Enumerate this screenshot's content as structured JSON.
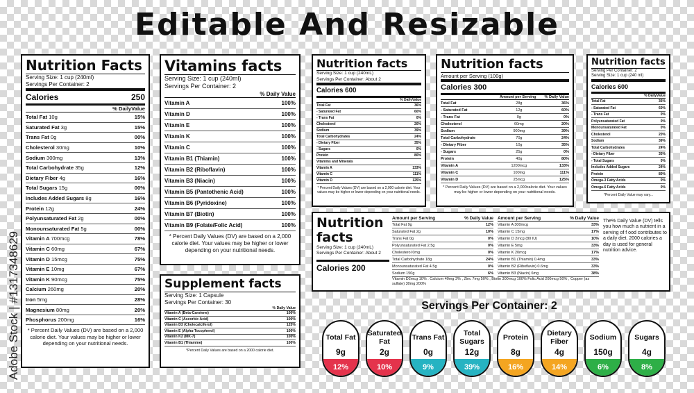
{
  "heading": "Editable And Resizable",
  "watermark": "Adobe Stock | #1317348629",
  "panels": [
    {
      "title": "Nutrition Facts",
      "lines": [
        "Serving Size: 1 cup (240ml)",
        "Servings Per Container: 2"
      ],
      "calories": [
        "Calories",
        "250"
      ],
      "header": [
        "% DailyValue"
      ],
      "rows": [
        [
          "Total Fat",
          "10g",
          "15%"
        ],
        [
          "Saturated Fat",
          "3g",
          "15%"
        ],
        [
          "Trans Fat",
          "0g",
          "00%"
        ],
        [
          "Cholesterol",
          "30mg",
          "10%"
        ],
        [
          "Sodium",
          "300mg",
          "13%"
        ],
        [
          "Total Carbohydrate",
          "35g",
          "12%"
        ],
        [
          "Dietary Fiber",
          "4g",
          "16%"
        ],
        [
          "Total Sugars",
          "15g",
          "00%"
        ],
        [
          "Includes Added Sugars",
          "8g",
          "16%"
        ],
        [
          "Protein",
          "12g",
          "24%"
        ],
        [
          "Polyunsaturated Fat",
          "2g",
          "00%"
        ],
        [
          "Monounsaturated Fat",
          "5g",
          "00%"
        ],
        [
          "Vitamin A",
          "700mcg",
          "78%"
        ],
        [
          "Vitamin C",
          "60mg",
          "67%"
        ],
        [
          "Vitamin D",
          "15mcg",
          "75%"
        ],
        [
          "Vitamin E",
          "10mg",
          "67%"
        ],
        [
          "Vitamin K",
          "90mcg",
          "75%"
        ],
        [
          "Calcium",
          "260mg",
          "20%"
        ],
        [
          "Iron",
          "5mg",
          "28%"
        ],
        [
          "Magnesium",
          "80mg",
          "20%"
        ],
        [
          "Phosphorus",
          "200mg",
          "16%"
        ]
      ],
      "footnote": "* Percent Daily Values (DV) are based on a 2,000 calorie diet. Your values may be higher or lower depending on your nutritional needs."
    },
    {
      "title": "Vitamins facts",
      "lines": [
        "Serving Size: 1 cup (240ml)",
        "Servings Per Container: 2"
      ],
      "header": [
        "% Daily Value"
      ],
      "rows": [
        [
          "Vitamin A",
          "100%"
        ],
        [
          "Vitamin D",
          "100%"
        ],
        [
          "Vitamin E",
          "100%"
        ],
        [
          "Vitamin K",
          "100%"
        ],
        [
          "Vitamin C",
          "100%"
        ],
        [
          "Vitamin B1 (Thiamin)",
          "100%"
        ],
        [
          "Vitamin B2 (Riboflavin)",
          "100%"
        ],
        [
          "Vitamin B3 (Niacin)",
          "100%"
        ],
        [
          "Vitamin B5 (Pantothenic Acid)",
          "100%"
        ],
        [
          "Vitamin B6 (Pyridoxine)",
          "100%"
        ],
        [
          "Vitamin B7 (Biotin)",
          "100%"
        ],
        [
          "Vitamin B9 (Folate/Folic Acid)",
          "100%"
        ]
      ],
      "footnote": "* Percent Daily Values (DV) are based on a 2,000 calorie diet. Your values may be higher or lower depending on your nutritional needs."
    },
    {
      "title": "Supplement facts",
      "lines": [
        "Serving Size: 1 Capsule",
        "Servings Per Container: 30"
      ],
      "header": [
        "% Daily Value"
      ],
      "rows": [
        [
          "Vitamin A (Beta-Carotene)",
          "100%"
        ],
        [
          "Vitamin C (Ascorbic Acid)",
          "100%"
        ],
        [
          "Vitamin D3 (Cholecalciferol)",
          "125%"
        ],
        [
          "Vitamin E (Alpha-Tocopherol)",
          "100%"
        ],
        [
          "Vitamin K2 (MK-7)",
          "100%"
        ],
        [
          "Vitamin B1 (Thiamine)",
          "100%"
        ]
      ],
      "footnote": "*Percent Daily Values are based on a 2000 calorie diet."
    },
    {
      "title": "Nutrition facts",
      "lines": [
        "Serving Size: 1 cup (240mL)",
        "Servings Per Container: About 2"
      ],
      "calories": [
        "Calories 600"
      ],
      "header": [
        "% DailyValue"
      ],
      "rows": [
        [
          "Total Fat",
          "36%"
        ],
        [
          "- Saturated Fat",
          "60%"
        ],
        [
          "- Trans Fat",
          "0%"
        ],
        [
          "Cholesterol",
          "20%"
        ],
        [
          "Sodium",
          "39%"
        ],
        [
          "Total Carbohydrates",
          "24%"
        ],
        [
          "- Dietary Fiber",
          "35%"
        ],
        [
          "- Sugars",
          "0%"
        ],
        [
          "Protein",
          "80%"
        ],
        [
          "Vitamins and Minerals"
        ],
        [
          "Vitamin A",
          "133%"
        ],
        [
          "Vitamin C",
          "111%"
        ],
        [
          "Vitamin D",
          "125%"
        ]
      ],
      "footnote": "* Percent Daily Values (DV) are based on a 2,000 calorie diet. Your values may be higher or lower depending on your nutritional needs."
    },
    {
      "title": "Nutrition facts",
      "lines": [
        "Amount per Serving (100g)"
      ],
      "calories": [
        "Calories 300"
      ],
      "header": [
        "Amount per Serving",
        "% Daily Value"
      ],
      "rows": [
        [
          "Total Fat",
          "28g",
          "36%"
        ],
        [
          "- Saturated Fat",
          "12g",
          "60%"
        ],
        [
          "- Trans Fat",
          "0g",
          "0%"
        ],
        [
          "Cholesterol",
          "60mg",
          "20%"
        ],
        [
          "Sodium",
          "900mg",
          "39%"
        ],
        [
          "Total Carbohydrate",
          "70g",
          "24%"
        ],
        [
          "- Dietary Fiber",
          "10g",
          "35%"
        ],
        [
          "- Sugars",
          "25g",
          "0%"
        ],
        [
          "Protein",
          "40g",
          "80%"
        ],
        [
          "Vitamin A",
          "1200mcg",
          "133%"
        ],
        [
          "Vitamin C",
          "100mg",
          "111%"
        ],
        [
          "Vitamin D",
          "25mcg",
          "125%"
        ]
      ],
      "footnote": "* Percent Daily Values (DV) are based on a 2,000calorie diet. Your values may be higher or lower depending on your nutritional needs."
    },
    {
      "title": "Nutrition facts",
      "lines": [
        "Serving Per Container: 2",
        "Serving Size: 1 cup (240 ml)"
      ],
      "calories": [
        "Calories 600"
      ],
      "header": [
        "% DailyValue"
      ],
      "rows": [
        [
          "Total Fat",
          "36%"
        ],
        [
          "- Saturated Fat",
          "60%"
        ],
        [
          "- Trans Fat",
          "0%"
        ],
        [
          "Polyunsaturated Fat",
          "0%"
        ],
        [
          "Monounsaturated Fat",
          "0%"
        ],
        [
          "Cholesterol",
          "20%"
        ],
        [
          "Sodium",
          "39%"
        ],
        [
          "Total Carbohydrates",
          "24%"
        ],
        [
          "- Dietary Fiber",
          "35%"
        ],
        [
          "- Total Sugars",
          "0%"
        ],
        [
          "Includes Added Sugars",
          "24%"
        ],
        [
          "Protein",
          "80%"
        ],
        [
          "Omega-3 Fatty Acids",
          "0%"
        ],
        [
          "Omega-6 Fatty Acids",
          "0%"
        ]
      ],
      "footnote": "*Percent Daily Value may vary..."
    }
  ],
  "wide_panel": {
    "title": "Nutrition facts",
    "lines": [
      "Serving Size: 1 cup (240mL)",
      "Servings Per Container: About 2"
    ],
    "calories": "Calories 200",
    "header_left": [
      "Amount per Serving",
      "% Daily Value"
    ],
    "rows_left": [
      [
        "Total Fat 9g",
        "12%"
      ],
      [
        "Saturated Fat 2g",
        "10%"
      ],
      [
        "Trans Fat 0g",
        "0%"
      ],
      [
        "Polyunsaturated Fat 2.5g",
        "0%"
      ],
      [
        "Cholesterol 0mg",
        "0%"
      ],
      [
        "Total Carbohydrate 18g",
        "24%"
      ],
      [
        "Monounsaturated Fat 4.5g",
        "0%"
      ],
      [
        "Sodium 150g",
        "6%"
      ]
    ],
    "header_right": [
      "Amount per Serving",
      "% Daily Value"
    ],
    "rows_right": [
      [
        "Vitamin A 300mcg",
        "33%"
      ],
      [
        "Vitamin C 15mg",
        "17%"
      ],
      [
        "Vitamin D 2mcg (80 IU)",
        "10%"
      ],
      [
        "Vitamin E 5mg",
        "33%"
      ],
      [
        "Vitamin K 20mcg",
        "17%"
      ],
      [
        "Vitamin B1 (Thiamin) 0.4mg",
        "33%"
      ],
      [
        "Vitamin B2 (Riboflavin) 0.6mg",
        "33%"
      ],
      [
        "Vitamin B3 (Niacin) 6mg",
        "38%"
      ]
    ],
    "footer": "Vitamin D2mcg 10% . Calcium 40mg 3% , Zinc 7mg 50% , Biotin 300mcg 100% Folic Acid 200mcg 50% , Copper (as sulfate) 30mg 200%",
    "note": "The% Daily Value (DV) tells you how much a nutrient in a serving of f ood contributes to a daily diet. 2000 calories a day is used for general nutrition advice."
  },
  "badges": {
    "title": "Servings Per Container: 2",
    "items": [
      {
        "name": "Total Fat",
        "amount": "9g",
        "percent": "12%",
        "color": "#e4334c"
      },
      {
        "name": "Saturated Fat",
        "amount": "2g",
        "percent": "10%",
        "color": "#e4334c"
      },
      {
        "name": "Trans Fat",
        "amount": "0g",
        "percent": "9%",
        "color": "#26b3c2"
      },
      {
        "name": "Total Sugars",
        "amount": "12g",
        "percent": "39%",
        "color": "#26b3c2"
      },
      {
        "name": "Protein",
        "amount": "8g",
        "percent": "16%",
        "color": "#f4a521"
      },
      {
        "name": "Dietary Fiber",
        "amount": "4g",
        "percent": "14%",
        "color": "#f4a521"
      },
      {
        "name": "Sodium",
        "amount": "150g",
        "percent": "6%",
        "color": "#2eaf47"
      },
      {
        "name": "Sugars",
        "amount": "4g",
        "percent": "8%",
        "color": "#2eaf47"
      }
    ]
  }
}
